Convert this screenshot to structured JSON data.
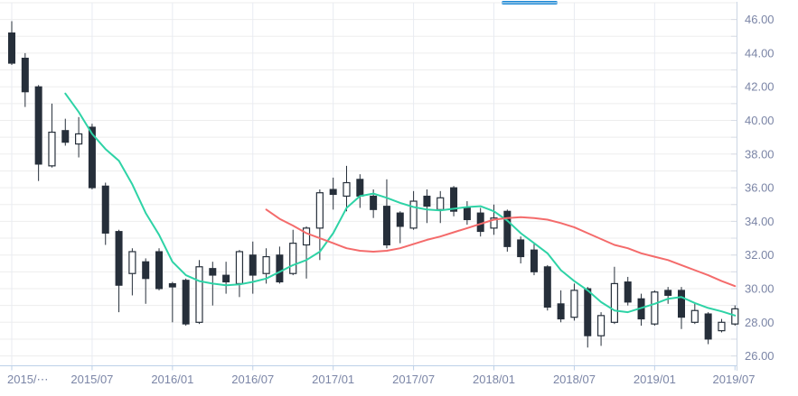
{
  "decorations": {
    "active_tab_indicator_color": "#1787d7"
  },
  "chart_data": {
    "type": "candlestick",
    "title": "",
    "xlabel": "",
    "ylabel": "",
    "grid": true,
    "legend_position": "none",
    "x_axis": {
      "tick_labels": [
        "2015/⋯",
        "2015/07",
        "2016/01",
        "2016/07",
        "2017/01",
        "2017/07",
        "2018/01",
        "2018/07",
        "2019/01",
        "2019/07"
      ],
      "tick_candle_indices": [
        0,
        6,
        12,
        18,
        24,
        30,
        36,
        42,
        48,
        54
      ]
    },
    "y_axis": {
      "side": "right",
      "tick_labels": [
        "46.00",
        "44.00",
        "42.00",
        "40.00",
        "38.00",
        "36.00",
        "34.00",
        "32.00",
        "30.00",
        "28.00",
        "26.00"
      ],
      "label_step": 2,
      "minor_gridline_step": 1,
      "range": [
        25.4,
        47.0
      ]
    },
    "colors": {
      "down_fill": "#262f3a",
      "up_fill": "#ffffff",
      "outline": "#262f3a",
      "grid_h": "#ededed",
      "grid_v": "#e8ebf2",
      "axis_line": "#bcd0e8",
      "right_axis_line": "#ccd6e4",
      "tick": "#d9dde6",
      "label": "#7b85a6",
      "ma_short": "#2ed3a6",
      "ma_long": "#f46b6b"
    },
    "candles": [
      {
        "t": "2015/01",
        "o": 45.2,
        "h": 45.9,
        "l": 43.3,
        "c": 43.4
      },
      {
        "t": "2015/02",
        "o": 43.7,
        "h": 44.0,
        "l": 40.8,
        "c": 41.7
      },
      {
        "t": "2015/03",
        "o": 42.0,
        "h": 42.1,
        "l": 36.4,
        "c": 37.4
      },
      {
        "t": "2015/04",
        "o": 37.3,
        "h": 41.0,
        "l": 37.2,
        "c": 39.3
      },
      {
        "t": "2015/05",
        "o": 39.4,
        "h": 40.1,
        "l": 38.5,
        "c": 38.7
      },
      {
        "t": "2015/06",
        "o": 38.6,
        "h": 40.2,
        "l": 37.8,
        "c": 39.2
      },
      {
        "t": "2015/07",
        "o": 39.6,
        "h": 39.8,
        "l": 35.9,
        "c": 36.0
      },
      {
        "t": "2015/08",
        "o": 36.1,
        "h": 36.3,
        "l": 32.6,
        "c": 33.3
      },
      {
        "t": "2015/09",
        "o": 33.4,
        "h": 33.5,
        "l": 28.6,
        "c": 30.2
      },
      {
        "t": "2015/10",
        "o": 30.9,
        "h": 32.4,
        "l": 29.6,
        "c": 32.2
      },
      {
        "t": "2015/11",
        "o": 31.6,
        "h": 31.8,
        "l": 29.1,
        "c": 30.6
      },
      {
        "t": "2015/12",
        "o": 32.2,
        "h": 32.4,
        "l": 29.9,
        "c": 30.0
      },
      {
        "t": "2016/01",
        "o": 30.3,
        "h": 30.4,
        "l": 28.0,
        "c": 30.1
      },
      {
        "t": "2016/02",
        "o": 30.5,
        "h": 30.6,
        "l": 27.8,
        "c": 27.9
      },
      {
        "t": "2016/03",
        "o": 28.0,
        "h": 31.7,
        "l": 27.9,
        "c": 31.3
      },
      {
        "t": "2016/04",
        "o": 31.2,
        "h": 31.6,
        "l": 29.0,
        "c": 30.8
      },
      {
        "t": "2016/05",
        "o": 30.8,
        "h": 31.6,
        "l": 29.7,
        "c": 30.4
      },
      {
        "t": "2016/06",
        "o": 30.3,
        "h": 32.3,
        "l": 29.5,
        "c": 32.2
      },
      {
        "t": "2016/07",
        "o": 32.0,
        "h": 32.8,
        "l": 29.7,
        "c": 30.8
      },
      {
        "t": "2016/08",
        "o": 30.9,
        "h": 32.4,
        "l": 30.3,
        "c": 31.9
      },
      {
        "t": "2016/09",
        "o": 32.0,
        "h": 32.5,
        "l": 30.3,
        "c": 30.4
      },
      {
        "t": "2016/10",
        "o": 30.9,
        "h": 33.5,
        "l": 30.8,
        "c": 32.7
      },
      {
        "t": "2016/11",
        "o": 32.6,
        "h": 33.7,
        "l": 30.6,
        "c": 33.6
      },
      {
        "t": "2016/12",
        "o": 33.6,
        "h": 35.9,
        "l": 31.7,
        "c": 35.7
      },
      {
        "t": "2017/01",
        "o": 35.9,
        "h": 36.6,
        "l": 34.7,
        "c": 35.6
      },
      {
        "t": "2017/02",
        "o": 35.5,
        "h": 37.3,
        "l": 34.6,
        "c": 36.3
      },
      {
        "t": "2017/03",
        "o": 36.5,
        "h": 36.8,
        "l": 34.8,
        "c": 35.5
      },
      {
        "t": "2017/04",
        "o": 35.5,
        "h": 35.9,
        "l": 34.2,
        "c": 34.7
      },
      {
        "t": "2017/05",
        "o": 34.9,
        "h": 36.5,
        "l": 32.4,
        "c": 32.6
      },
      {
        "t": "2017/06",
        "o": 34.5,
        "h": 34.6,
        "l": 32.7,
        "c": 33.7
      },
      {
        "t": "2017/07",
        "o": 33.6,
        "h": 35.8,
        "l": 33.5,
        "c": 35.2
      },
      {
        "t": "2017/08",
        "o": 35.5,
        "h": 35.9,
        "l": 33.9,
        "c": 34.9
      },
      {
        "t": "2017/09",
        "o": 34.7,
        "h": 35.8,
        "l": 33.9,
        "c": 35.4
      },
      {
        "t": "2017/10",
        "o": 36.0,
        "h": 36.1,
        "l": 34.3,
        "c": 34.6
      },
      {
        "t": "2017/11",
        "o": 34.8,
        "h": 35.2,
        "l": 33.8,
        "c": 34.1
      },
      {
        "t": "2017/12",
        "o": 34.5,
        "h": 34.8,
        "l": 33.1,
        "c": 33.4
      },
      {
        "t": "2018/01",
        "o": 33.6,
        "h": 35.0,
        "l": 33.2,
        "c": 34.2
      },
      {
        "t": "2018/02",
        "o": 34.6,
        "h": 34.7,
        "l": 32.2,
        "c": 32.5
      },
      {
        "t": "2018/03",
        "o": 32.9,
        "h": 33.1,
        "l": 31.5,
        "c": 31.9
      },
      {
        "t": "2018/04",
        "o": 32.3,
        "h": 32.7,
        "l": 30.8,
        "c": 31.0
      },
      {
        "t": "2018/05",
        "o": 31.3,
        "h": 31.4,
        "l": 28.7,
        "c": 28.9
      },
      {
        "t": "2018/06",
        "o": 29.1,
        "h": 29.9,
        "l": 28.0,
        "c": 28.2
      },
      {
        "t": "2018/07",
        "o": 28.3,
        "h": 30.3,
        "l": 28.1,
        "c": 29.9
      },
      {
        "t": "2018/08",
        "o": 30.0,
        "h": 30.1,
        "l": 26.5,
        "c": 27.2
      },
      {
        "t": "2018/09",
        "o": 27.2,
        "h": 28.6,
        "l": 26.6,
        "c": 28.4
      },
      {
        "t": "2018/10",
        "o": 28.0,
        "h": 31.3,
        "l": 27.9,
        "c": 30.3
      },
      {
        "t": "2018/11",
        "o": 30.4,
        "h": 30.7,
        "l": 29.0,
        "c": 29.2
      },
      {
        "t": "2018/12",
        "o": 29.4,
        "h": 29.7,
        "l": 27.8,
        "c": 28.2
      },
      {
        "t": "2019/01",
        "o": 27.9,
        "h": 29.9,
        "l": 27.8,
        "c": 29.8
      },
      {
        "t": "2019/02",
        "o": 29.9,
        "h": 30.1,
        "l": 29.1,
        "c": 29.6
      },
      {
        "t": "2019/03",
        "o": 29.9,
        "h": 30.1,
        "l": 27.6,
        "c": 28.3
      },
      {
        "t": "2019/04",
        "o": 28.0,
        "h": 29.1,
        "l": 27.9,
        "c": 28.7
      },
      {
        "t": "2019/05",
        "o": 28.5,
        "h": 28.6,
        "l": 26.7,
        "c": 27.0
      },
      {
        "t": "2019/06",
        "o": 27.5,
        "h": 28.2,
        "l": 27.4,
        "c": 28.0
      },
      {
        "t": "2019/07",
        "o": 27.9,
        "h": 29.0,
        "l": 27.8,
        "c": 28.8
      }
    ],
    "series": [
      {
        "name": "short-term-moving-average",
        "color": "#2ed3a6",
        "values": [
          null,
          null,
          null,
          null,
          41.6,
          40.5,
          39.2,
          38.3,
          37.6,
          36.2,
          34.5,
          33.2,
          31.6,
          30.8,
          30.45,
          30.3,
          30.2,
          30.25,
          30.4,
          30.6,
          31.0,
          31.4,
          31.7,
          32.2,
          33.3,
          34.8,
          35.5,
          35.65,
          35.4,
          35.1,
          34.85,
          34.7,
          34.65,
          34.75,
          34.85,
          34.9,
          34.6,
          34.05,
          33.3,
          32.7,
          32.1,
          31.1,
          30.45,
          29.9,
          29.2,
          28.7,
          28.6,
          28.85,
          29.1,
          29.4,
          29.5,
          29.15,
          28.85,
          28.65,
          28.4
        ]
      },
      {
        "name": "long-term-moving-average",
        "color": "#f46b6b",
        "values": [
          null,
          null,
          null,
          null,
          null,
          null,
          null,
          null,
          null,
          null,
          null,
          null,
          null,
          null,
          null,
          null,
          null,
          null,
          null,
          34.7,
          34.15,
          33.75,
          33.3,
          33.0,
          32.7,
          32.4,
          32.25,
          32.2,
          32.25,
          32.4,
          32.65,
          32.9,
          33.1,
          33.35,
          33.6,
          33.85,
          34.1,
          34.2,
          34.25,
          34.2,
          34.1,
          33.9,
          33.65,
          33.3,
          32.95,
          32.6,
          32.4,
          32.1,
          31.9,
          31.7,
          31.4,
          31.1,
          30.8,
          30.45,
          30.15
        ]
      }
    ]
  }
}
